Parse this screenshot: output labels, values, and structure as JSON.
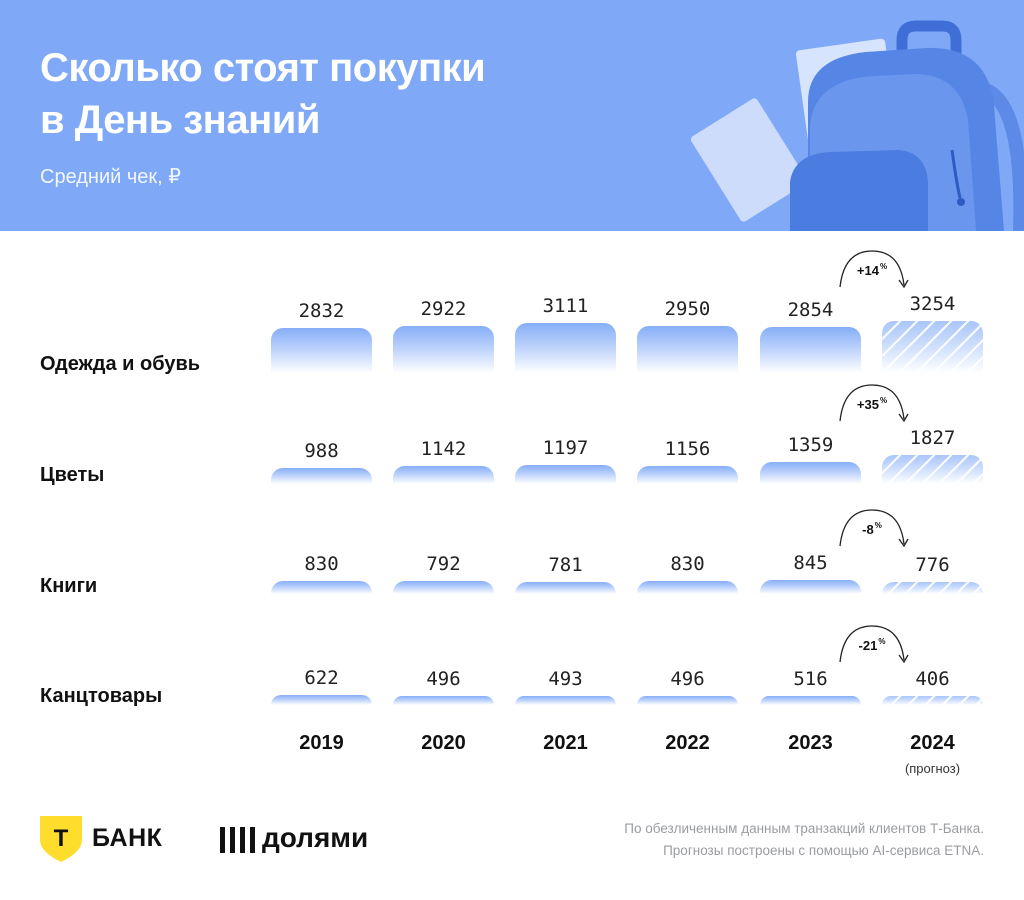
{
  "header": {
    "title_line1": "Сколько стоят покупки",
    "title_line2": "в День знаний",
    "subtitle": "Средний чек, ₽"
  },
  "chart_data": {
    "type": "bar",
    "title": "Сколько стоят покупки в День знаний",
    "ylabel": "Средний чек, ₽",
    "categories": [
      "2019",
      "2020",
      "2021",
      "2022",
      "2023",
      "2024"
    ],
    "forecast_note": "(прогноз)",
    "series": [
      {
        "name": "Одежда и обувь",
        "values": [
          2832,
          2922,
          3111,
          2950,
          2854,
          3254
        ],
        "change_label": "+14",
        "change_unit": "%"
      },
      {
        "name": "Цветы",
        "values": [
          988,
          1142,
          1197,
          1156,
          1359,
          1827
        ],
        "change_label": "+35",
        "change_unit": "%"
      },
      {
        "name": "Книги",
        "values": [
          830,
          792,
          781,
          830,
          845,
          776
        ],
        "change_label": "-8",
        "change_unit": "%"
      },
      {
        "name": "Канцтовары",
        "values": [
          622,
          496,
          493,
          496,
          516,
          406
        ],
        "change_label": "-21",
        "change_unit": "%"
      }
    ]
  },
  "footer": {
    "tbank": "БАНК",
    "tbank_letter": "Т",
    "dolyami": "долями",
    "note_line1": "По обезличенным данным транзакций клиентов Т-Банка.",
    "note_line2": "Прогнозы построены с помощью AI-сервиса ETNA."
  },
  "colors": {
    "header_bg": "#7fa9f7",
    "bar_top": "#86aef7",
    "tbank_yellow": "#ffdd2d"
  }
}
